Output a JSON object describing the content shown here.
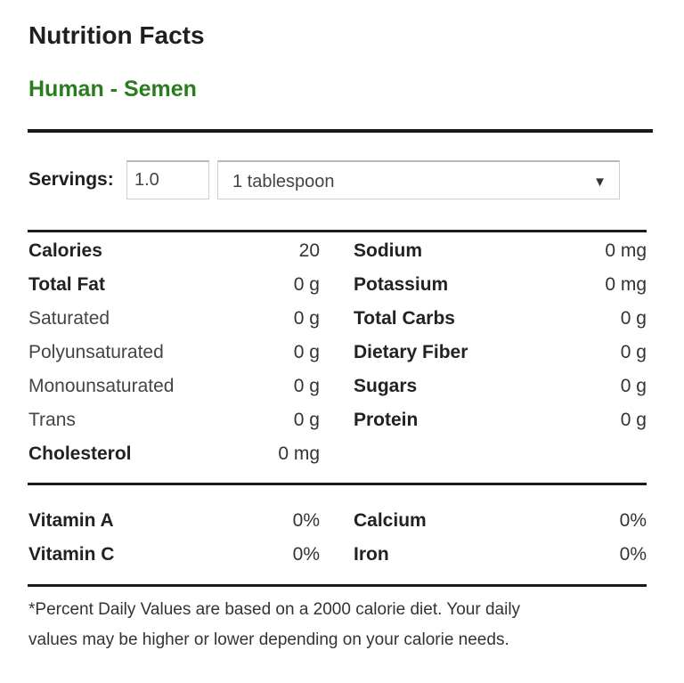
{
  "header": {
    "title": "Nutrition Facts",
    "food_name": "Human - Semen"
  },
  "servings": {
    "label": "Servings:",
    "quantity": "1.0",
    "unit": "1 tablespoon",
    "arrow_icon": "triangle-down-icon"
  },
  "nutrients": {
    "left": [
      {
        "label": "Calories",
        "value": "20",
        "bold": true
      },
      {
        "label": "Total Fat",
        "value": "0 g",
        "bold": true
      },
      {
        "label": "Saturated",
        "value": "0 g",
        "bold": false
      },
      {
        "label": "Polyunsaturated",
        "value": "0 g",
        "bold": false
      },
      {
        "label": "Monounsaturated",
        "value": "0 g",
        "bold": false
      },
      {
        "label": "Trans",
        "value": "0 g",
        "bold": false
      },
      {
        "label": "Cholesterol",
        "value": "0 mg",
        "bold": true
      }
    ],
    "right": [
      {
        "label": "Sodium",
        "value": "0 mg",
        "bold": true
      },
      {
        "label": "Potassium",
        "value": "0 mg",
        "bold": true
      },
      {
        "label": "Total Carbs",
        "value": "0 g",
        "bold": true
      },
      {
        "label": "Dietary Fiber",
        "value": "0 g",
        "bold": true
      },
      {
        "label": "Sugars",
        "value": "0 g",
        "bold": true
      },
      {
        "label": "Protein",
        "value": "0 g",
        "bold": true
      }
    ]
  },
  "vitamins": {
    "left": [
      {
        "label": "Vitamin A",
        "value": "0%"
      },
      {
        "label": "Vitamin C",
        "value": "0%"
      }
    ],
    "right": [
      {
        "label": "Calcium",
        "value": "0%"
      },
      {
        "label": "Iron",
        "value": "0%"
      }
    ]
  },
  "footnote": {
    "line1": "*Percent Daily Values are based on a 2000 calorie diet. Your daily",
    "line2": "values may be higher or lower depending on your calorie needs."
  },
  "colors": {
    "food_name": "#2a7d1f",
    "rules": "#1a1a1a"
  }
}
